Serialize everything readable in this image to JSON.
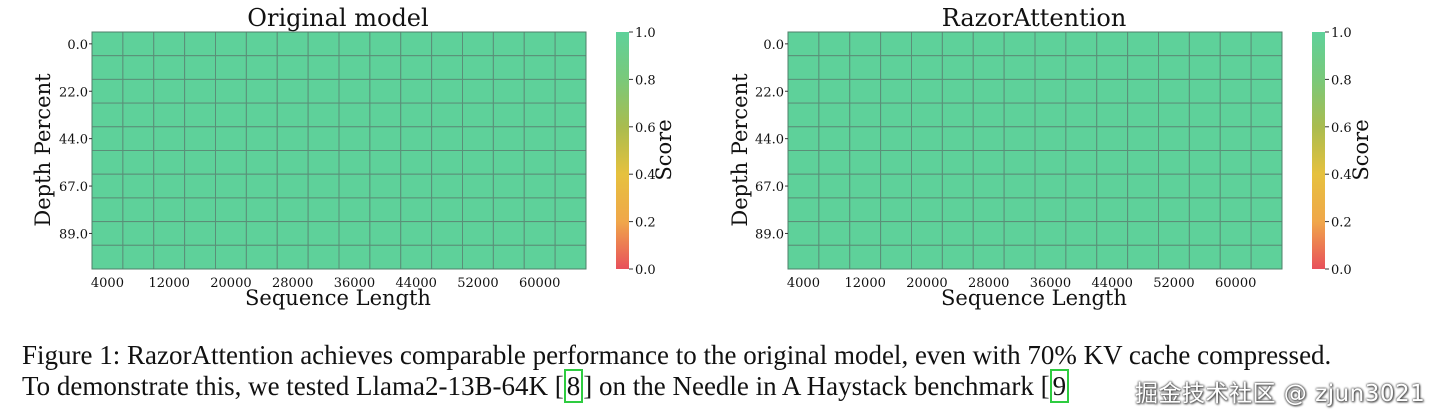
{
  "chart_data": [
    {
      "type": "heatmap",
      "title": "Original model",
      "xlabel": "Sequence Length",
      "ylabel": "Depth Percent",
      "x_tick_labels": [
        "4000",
        "12000",
        "20000",
        "28000",
        "36000",
        "44000",
        "52000",
        "60000"
      ],
      "y_tick_labels": [
        "0.0",
        "22.0",
        "44.0",
        "67.0",
        "89.0"
      ],
      "n_cols": 16,
      "n_rows": 10,
      "values": [
        [
          1,
          1,
          1,
          1,
          1,
          1,
          1,
          1,
          1,
          1,
          1,
          1,
          1,
          1,
          1,
          1
        ],
        [
          1,
          1,
          1,
          1,
          1,
          1,
          1,
          1,
          1,
          1,
          1,
          1,
          1,
          1,
          1,
          1
        ],
        [
          1,
          1,
          1,
          1,
          1,
          1,
          1,
          1,
          1,
          1,
          1,
          1,
          1,
          1,
          1,
          1
        ],
        [
          1,
          1,
          1,
          1,
          1,
          1,
          1,
          1,
          1,
          1,
          1,
          1,
          1,
          1,
          1,
          1
        ],
        [
          1,
          1,
          1,
          1,
          1,
          1,
          1,
          1,
          1,
          1,
          1,
          1,
          1,
          1,
          1,
          1
        ],
        [
          1,
          1,
          1,
          1,
          1,
          1,
          1,
          1,
          1,
          1,
          1,
          1,
          1,
          1,
          1,
          1
        ],
        [
          1,
          1,
          1,
          1,
          1,
          1,
          1,
          1,
          1,
          1,
          1,
          1,
          1,
          1,
          1,
          1
        ],
        [
          1,
          1,
          1,
          1,
          1,
          1,
          1,
          1,
          1,
          1,
          1,
          1,
          1,
          1,
          1,
          1
        ],
        [
          1,
          1,
          1,
          1,
          1,
          1,
          1,
          1,
          1,
          1,
          1,
          1,
          1,
          1,
          1,
          1
        ],
        [
          1,
          1,
          1,
          1,
          1,
          1,
          1,
          1,
          1,
          1,
          1,
          1,
          1,
          1,
          1,
          1
        ]
      ],
      "colorbar": {
        "label": "Score",
        "range": [
          0.0,
          1.0
        ],
        "tick_labels": [
          "0.0",
          "0.2",
          "0.4",
          "0.6",
          "0.8",
          "1.0"
        ],
        "colors": [
          "#e8505b",
          "#f0a74a",
          "#e6c13e",
          "#a9bc4f",
          "#7ac97a",
          "#5ed19a"
        ]
      }
    },
    {
      "type": "heatmap",
      "title": "RazorAttention",
      "xlabel": "Sequence Length",
      "ylabel": "Depth Percent",
      "x_tick_labels": [
        "4000",
        "12000",
        "20000",
        "28000",
        "36000",
        "44000",
        "52000",
        "60000"
      ],
      "y_tick_labels": [
        "0.0",
        "22.0",
        "44.0",
        "67.0",
        "89.0"
      ],
      "n_cols": 16,
      "n_rows": 10,
      "values": [
        [
          1,
          1,
          1,
          1,
          1,
          1,
          1,
          1,
          1,
          1,
          1,
          1,
          1,
          1,
          1,
          1
        ],
        [
          1,
          1,
          1,
          1,
          1,
          1,
          1,
          1,
          1,
          1,
          1,
          1,
          1,
          1,
          1,
          1
        ],
        [
          1,
          1,
          1,
          1,
          1,
          1,
          1,
          1,
          1,
          1,
          1,
          1,
          1,
          1,
          1,
          1
        ],
        [
          1,
          1,
          1,
          1,
          1,
          1,
          1,
          1,
          1,
          1,
          1,
          1,
          1,
          1,
          1,
          1
        ],
        [
          1,
          1,
          1,
          1,
          1,
          1,
          1,
          1,
          1,
          1,
          1,
          1,
          1,
          1,
          1,
          1
        ],
        [
          1,
          1,
          1,
          1,
          1,
          1,
          1,
          1,
          1,
          1,
          1,
          1,
          1,
          1,
          1,
          1
        ],
        [
          1,
          1,
          1,
          1,
          1,
          1,
          1,
          1,
          1,
          1,
          1,
          1,
          1,
          1,
          1,
          1
        ],
        [
          1,
          1,
          1,
          1,
          1,
          1,
          1,
          1,
          1,
          1,
          1,
          1,
          1,
          1,
          1,
          1
        ],
        [
          1,
          1,
          1,
          1,
          1,
          1,
          1,
          1,
          1,
          1,
          1,
          1,
          1,
          1,
          1,
          1
        ],
        [
          1,
          1,
          1,
          1,
          1,
          1,
          1,
          1,
          1,
          1,
          1,
          1,
          1,
          1,
          1,
          1
        ]
      ],
      "colorbar": {
        "label": "Score",
        "range": [
          0.0,
          1.0
        ],
        "tick_labels": [
          "0.0",
          "0.2",
          "0.4",
          "0.6",
          "0.8",
          "1.0"
        ],
        "colors": [
          "#e8505b",
          "#f0a74a",
          "#e6c13e",
          "#a9bc4f",
          "#7ac97a",
          "#5ed19a"
        ]
      }
    }
  ],
  "caption": {
    "line1": "Figure 1: RazorAttention achieves comparable performance to the original model, even with 70% KV cache compressed.",
    "line2_a": "To demonstrate this, we tested Llama2-13B-64K [",
    "line2_ref": "8",
    "line2_b": "] on the Needle in A Haystack benchmark [",
    "line2_ref2": "9"
  },
  "watermark": "掘金技术社区 @ zjun3021"
}
